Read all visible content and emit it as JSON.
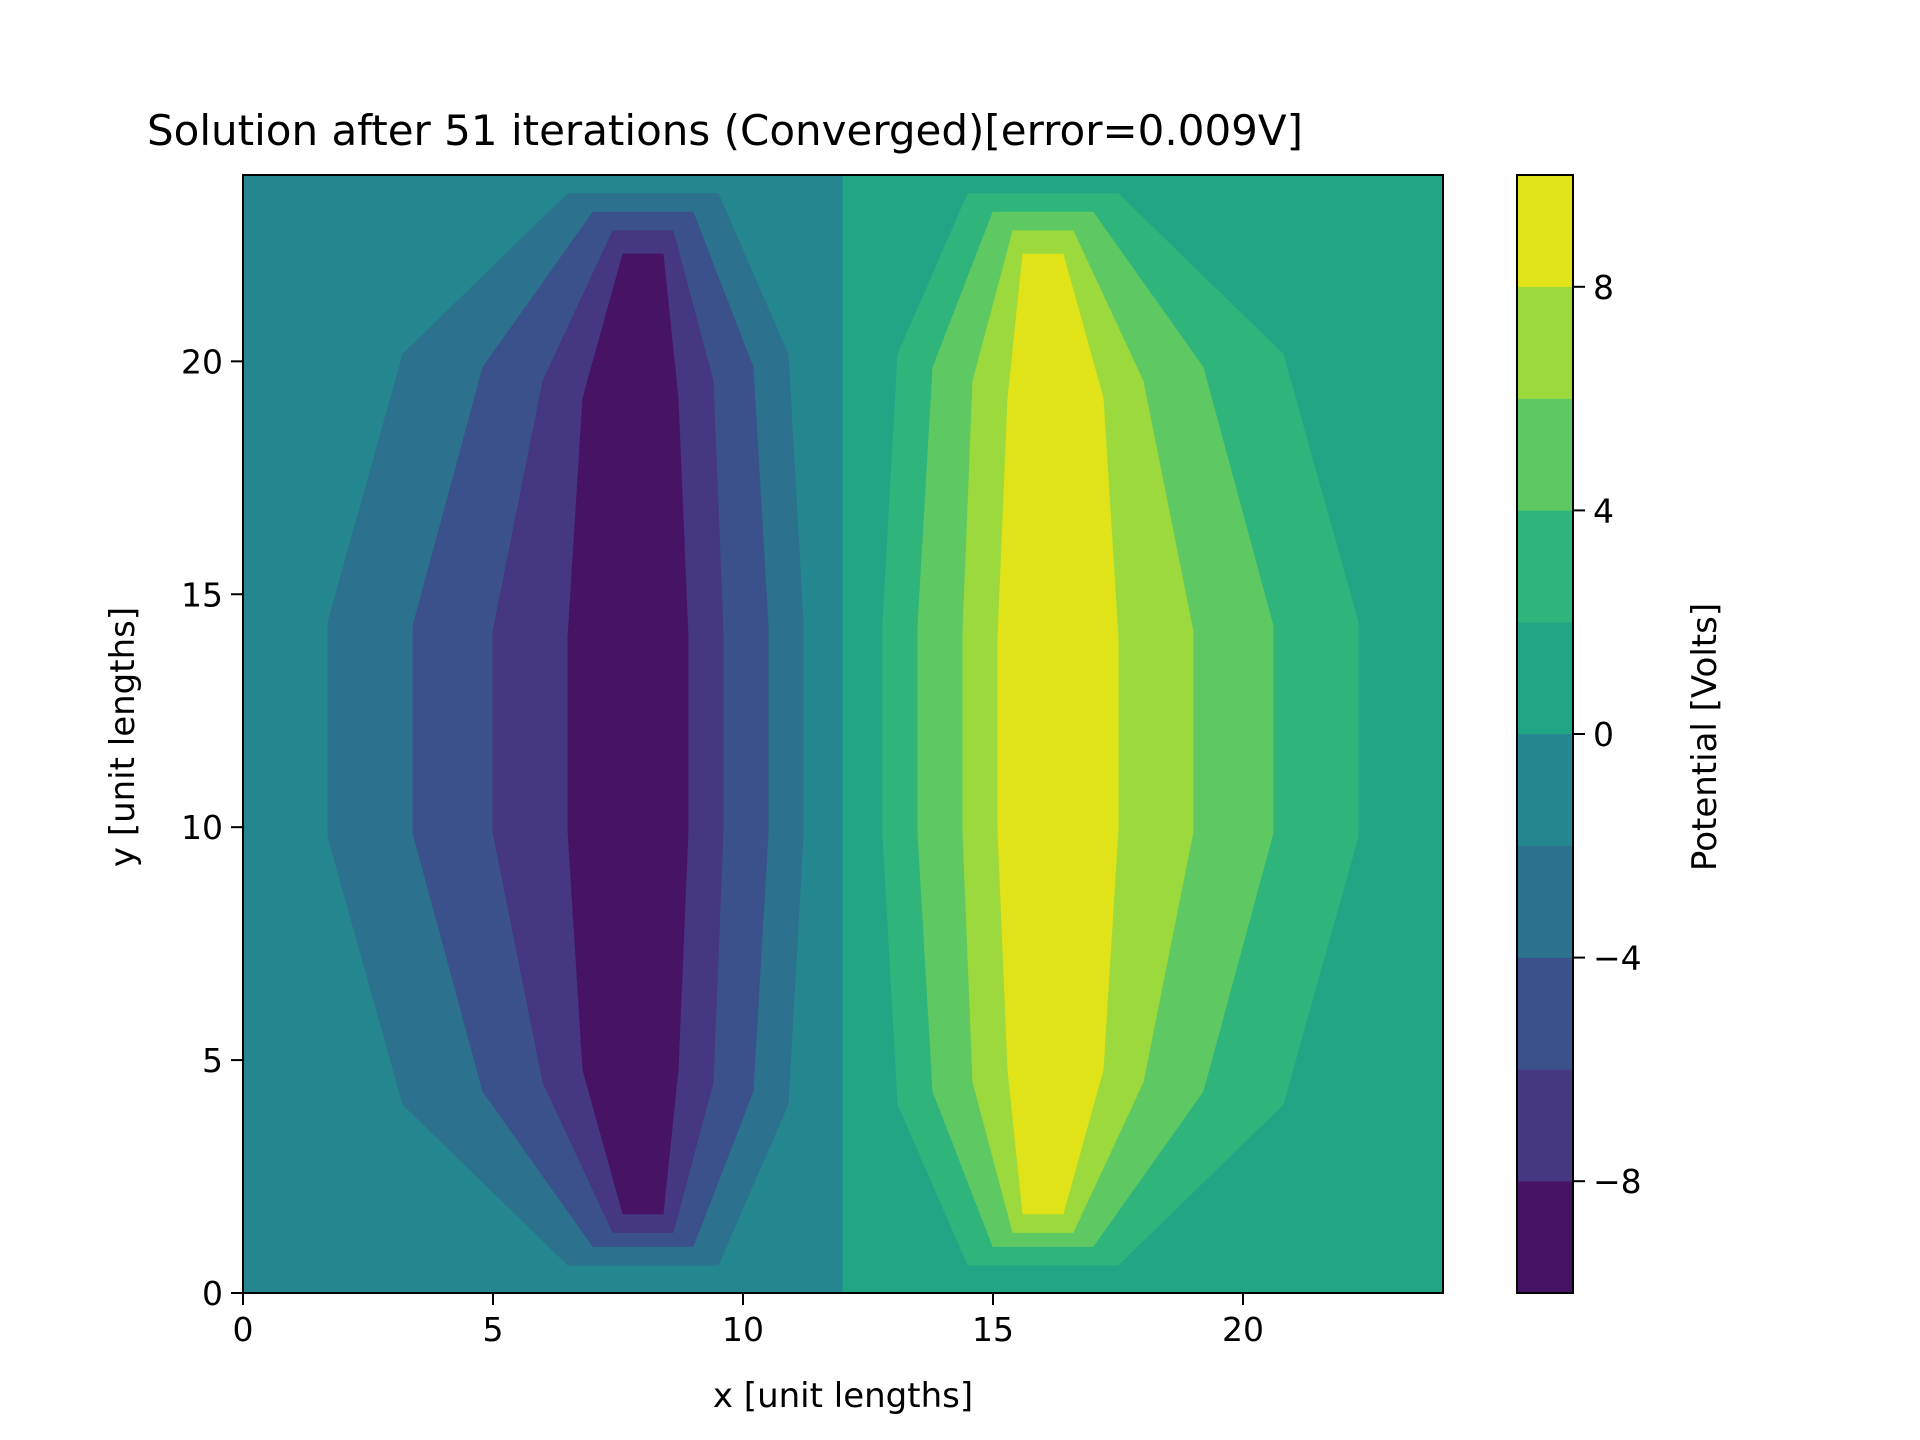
{
  "chart_data": {
    "type": "contourf",
    "title": "Solution after 51 iterations (Converged)[error=0.009V]",
    "xlabel": "x [unit lengths]",
    "ylabel": "y [unit lengths]",
    "xlim": [
      0,
      24
    ],
    "ylim": [
      0,
      24
    ],
    "xticks": [
      0,
      5,
      10,
      15,
      20
    ],
    "yticks": [
      0,
      5,
      10,
      15,
      20
    ],
    "grid": false,
    "colormap": "viridis",
    "colorbar": {
      "label": "Potential [Volts]",
      "range": [
        -10,
        10
      ],
      "ticks": [
        -8,
        -4,
        0,
        4,
        8
      ],
      "levels": [
        -10,
        -8,
        -6,
        -4,
        -2,
        0,
        2,
        4,
        6,
        8,
        10
      ],
      "tick_labels": [
        "−8",
        "−4",
        "0",
        "4",
        "8"
      ]
    },
    "regions": [
      {
        "sign": -1,
        "x_center": 8,
        "x_range": [
          0,
          12
        ],
        "note": "negative plate at x=8, y from 2 to 22"
      },
      {
        "sign": 1,
        "x_center": 16,
        "x_range": [
          12,
          24
        ],
        "note": "positive plate at x=16, y from 2 to 22"
      }
    ],
    "contour_bands": [
      {
        "sign": -1,
        "level_range": [
          -10,
          -8
        ],
        "color": "#471365",
        "x_left": [
          7.6,
          6.8,
          6.5,
          6.5,
          6.8,
          7.6
        ],
        "x_right": [
          8.4,
          8.7,
          8.9,
          8.9,
          8.7,
          8.4
        ],
        "y_bottom": 1.7,
        "y_top": 22.3
      },
      {
        "sign": -1,
        "level_range": [
          -8,
          -6
        ],
        "color": "#453781",
        "x_left": [
          7.4,
          6.0,
          5.0,
          5.0,
          6.0,
          7.4
        ],
        "x_right": [
          8.6,
          9.4,
          9.6,
          9.6,
          9.4,
          8.6
        ],
        "y_bottom": 1.3,
        "y_top": 22.8
      },
      {
        "sign": -1,
        "level_range": [
          -6,
          -4
        ],
        "color": "#3b518b",
        "x_left": [
          7.0,
          4.8,
          3.4,
          3.4,
          4.8,
          7.0
        ],
        "x_right": [
          9.0,
          10.2,
          10.5,
          10.5,
          10.2,
          9.0
        ],
        "y_bottom": 1.0,
        "y_top": 23.2
      },
      {
        "sign": -1,
        "level_range": [
          -4,
          -2
        ],
        "color": "#2c718e",
        "x_left": [
          6.5,
          3.2,
          1.7,
          1.7,
          3.2,
          6.5
        ],
        "x_right": [
          9.5,
          10.9,
          11.2,
          11.2,
          10.9,
          9.5
        ],
        "y_bottom": 0.6,
        "y_top": 23.6
      },
      {
        "sign": -1,
        "level_range": [
          -2,
          0
        ],
        "color": "#24868e",
        "x_left": [
          0,
          0,
          0,
          0,
          0,
          0
        ],
        "x_right": [
          12,
          12,
          12,
          12,
          12,
          12
        ],
        "y_bottom": 0,
        "y_top": 24
      },
      {
        "sign": 1,
        "level_range": [
          0,
          2
        ],
        "color": "#21a585",
        "x_left": [
          12,
          12,
          12,
          12,
          12,
          12
        ],
        "x_right": [
          24,
          24,
          24,
          24,
          24,
          24
        ],
        "y_bottom": 0,
        "y_top": 24
      },
      {
        "sign": 1,
        "level_range": [
          2,
          4
        ],
        "color": "#2fb47c",
        "x_left": [
          14.5,
          13.1,
          12.8,
          12.8,
          13.1,
          14.5
        ],
        "x_right": [
          17.5,
          20.8,
          22.3,
          22.3,
          20.8,
          17.5
        ],
        "y_bottom": 0.6,
        "y_top": 23.6
      },
      {
        "sign": 1,
        "level_range": [
          4,
          6
        ],
        "color": "#5ec962",
        "x_left": [
          15.0,
          13.8,
          13.5,
          13.5,
          13.8,
          15.0
        ],
        "x_right": [
          17.0,
          19.2,
          20.6,
          20.6,
          19.2,
          17.0
        ],
        "y_bottom": 1.0,
        "y_top": 23.2
      },
      {
        "sign": 1,
        "level_range": [
          6,
          8
        ],
        "color": "#9bd93c",
        "x_left": [
          15.4,
          14.6,
          14.4,
          14.4,
          14.6,
          15.4
        ],
        "x_right": [
          16.6,
          18.0,
          19.0,
          19.0,
          18.0,
          16.6
        ],
        "y_bottom": 1.3,
        "y_top": 22.8
      },
      {
        "sign": 1,
        "level_range": [
          8,
          10
        ],
        "color": "#e0e318",
        "x_left": [
          15.6,
          15.3,
          15.1,
          15.1,
          15.3,
          15.6
        ],
        "x_right": [
          16.4,
          17.2,
          17.5,
          17.5,
          17.2,
          16.4
        ],
        "y_bottom": 1.7,
        "y_top": 22.3
      }
    ],
    "band_profile_y_fractions": [
      0,
      0.15,
      0.4,
      0.6,
      0.85,
      1
    ]
  }
}
